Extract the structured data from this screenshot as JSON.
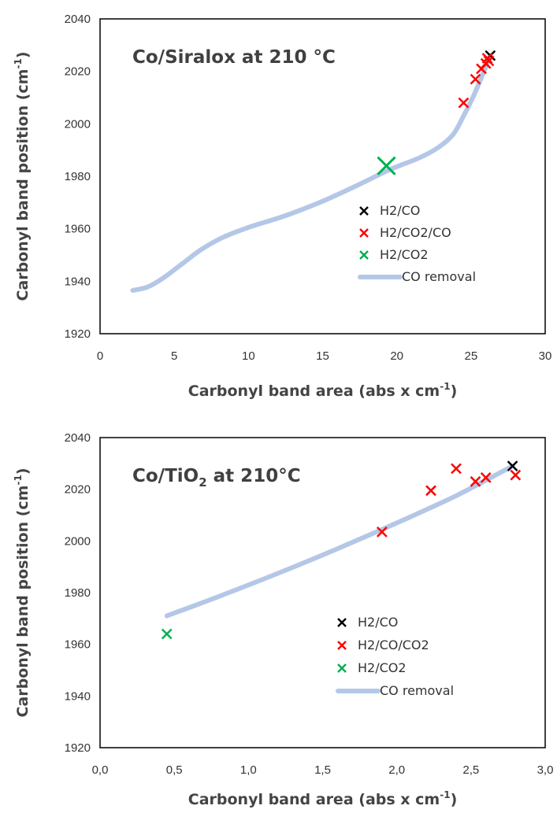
{
  "chart_data": [
    {
      "type": "scatter",
      "title": "Co/Siralox at 210 °C",
      "title_parts": [
        {
          "text": "Co/Siralox at 210 °C",
          "sub": false
        }
      ],
      "xlabel": "Carbonyl band area (abs x cm",
      "xlabel_sup": "-1",
      "xlabel_end": ")",
      "ylabel": "Carbonyl band position (cm",
      "ylabel_sup": "-1",
      "ylabel_end": ")",
      "xlim": [
        0,
        30
      ],
      "ylim": [
        1920,
        2040
      ],
      "xticks": [
        0,
        5,
        10,
        15,
        20,
        25,
        30
      ],
      "xtick_labels": [
        "0",
        "5",
        "10",
        "15",
        "20",
        "25",
        "30"
      ],
      "yticks": [
        1920,
        1940,
        1960,
        1980,
        2000,
        2020,
        2040
      ],
      "ytick_labels": [
        "1920",
        "1940",
        "1960",
        "1980",
        "2000",
        "2020",
        "2040"
      ],
      "grid": false,
      "legend_position": "right-middle",
      "series": [
        {
          "name": "H2/CO",
          "kind": "marker",
          "color": "#000000",
          "marker_size": 1,
          "points": [
            [
              26.3,
              2026
            ]
          ]
        },
        {
          "name": "H2/CO2/CO",
          "kind": "marker",
          "color": "#ff0000",
          "marker_size": 1,
          "points": [
            [
              24.5,
              2008
            ],
            [
              25.3,
              2017
            ],
            [
              25.7,
              2021
            ],
            [
              26.0,
              2023
            ],
            [
              26.1,
              2025
            ],
            [
              26.2,
              2024
            ]
          ]
        },
        {
          "name": "H2/CO2",
          "kind": "marker",
          "color": "#00b050",
          "marker_size": 2,
          "points": [
            [
              19.3,
              1984
            ]
          ]
        },
        {
          "name": "CO removal",
          "kind": "line",
          "color": "#b4c7e7",
          "points": [
            [
              2.2,
              1936.5
            ],
            [
              3.2,
              1937.8
            ],
            [
              4.2,
              1941
            ],
            [
              5.5,
              1946.5
            ],
            [
              6.8,
              1952
            ],
            [
              8.2,
              1956.5
            ],
            [
              10.0,
              1960.5
            ],
            [
              12.5,
              1965
            ],
            [
              15.0,
              1970.5
            ],
            [
              17.5,
              1977
            ],
            [
              19.5,
              1982.5
            ],
            [
              21.5,
              1987
            ],
            [
              22.8,
              1991
            ],
            [
              23.8,
              1996
            ],
            [
              24.5,
              2003
            ],
            [
              25.2,
              2011
            ],
            [
              25.8,
              2019
            ],
            [
              26.3,
              2026
            ]
          ]
        }
      ]
    },
    {
      "type": "scatter",
      "title": "Co/TiO2 at 210°C",
      "title_parts": [
        {
          "text": "Co/TiO",
          "sub": false
        },
        {
          "text": "2",
          "sub": true
        },
        {
          "text": " at 210°C",
          "sub": false
        }
      ],
      "xlabel": "Carbonyl band area (abs x cm",
      "xlabel_sup": "-1",
      "xlabel_end": ")",
      "ylabel": "Carbonyl band position (cm",
      "ylabel_sup": "-1",
      "ylabel_end": ")",
      "xlim": [
        0,
        3
      ],
      "ylim": [
        1920,
        2040
      ],
      "xticks": [
        0,
        0.5,
        1,
        1.5,
        2,
        2.5,
        3
      ],
      "xtick_labels": [
        "0,0",
        "0,5",
        "1,0",
        "1,5",
        "2,0",
        "2,5",
        "3,0"
      ],
      "yticks": [
        1920,
        1940,
        1960,
        1980,
        2000,
        2020,
        2040
      ],
      "ytick_labels": [
        "1920",
        "1940",
        "1960",
        "1980",
        "2000",
        "2020",
        "2040"
      ],
      "grid": false,
      "legend_position": "bottom-right",
      "series": [
        {
          "name": "H2/CO",
          "kind": "marker",
          "color": "#000000",
          "marker_size": 1,
          "points": [
            [
              2.78,
              2029
            ]
          ]
        },
        {
          "name": "H2/CO/CO2",
          "kind": "marker",
          "color": "#ff0000",
          "marker_size": 1,
          "points": [
            [
              1.9,
              2003.5
            ],
            [
              2.23,
              2019.5
            ],
            [
              2.4,
              2028
            ],
            [
              2.53,
              2023
            ],
            [
              2.6,
              2024.5
            ],
            [
              2.8,
              2025.5
            ]
          ]
        },
        {
          "name": "H2/CO2",
          "kind": "marker",
          "color": "#00b050",
          "marker_size": 1,
          "points": [
            [
              0.45,
              1964
            ]
          ]
        },
        {
          "name": "CO removal",
          "kind": "line",
          "color": "#b4c7e7",
          "points": [
            [
              0.45,
              1971
            ],
            [
              0.8,
              1978.5
            ],
            [
              1.2,
              1987.5
            ],
            [
              1.6,
              1997
            ],
            [
              2.0,
              2007
            ],
            [
              2.4,
              2017.5
            ],
            [
              2.78,
              2029
            ]
          ]
        }
      ]
    }
  ]
}
